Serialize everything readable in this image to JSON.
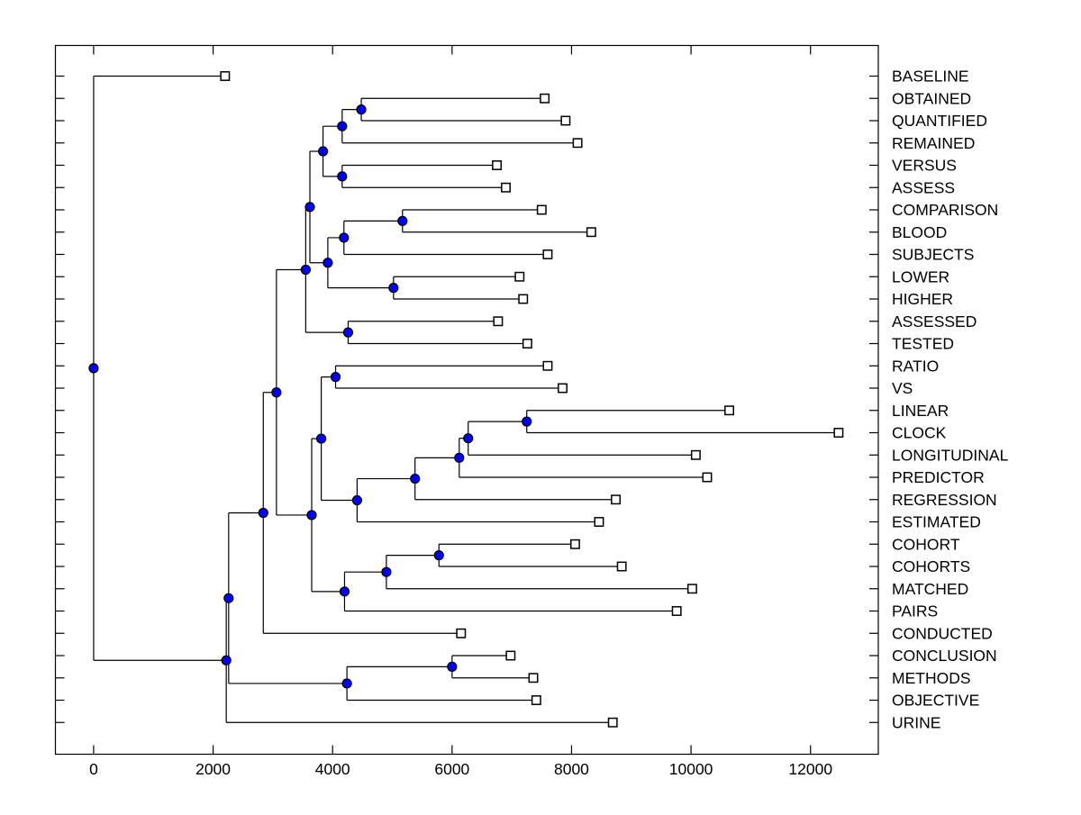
{
  "window": {
    "background": "#ffffff"
  },
  "chart_data": {
    "type": "dendrogram",
    "orientation": "root-left-leaves-right",
    "title": "",
    "xlabel": "",
    "ylabel": "",
    "grid": false,
    "legend": null,
    "x_range": [
      -640,
      13135
    ],
    "x_tick_values": [
      0,
      2000,
      4000,
      6000,
      8000,
      10000,
      12000
    ],
    "x_tick_labels": [
      "0",
      "2000",
      "4000",
      "6000",
      "8000",
      "10000",
      "12000"
    ],
    "leaf_labels": [
      "BASELINE",
      "OBTAINED",
      "QUANTIFIED",
      "REMAINED",
      "VERSUS",
      "ASSESS",
      "COMPARISON",
      "BLOOD",
      "SUBJECTS",
      "LOWER",
      "HIGHER",
      "ASSESSED",
      "TESTED",
      "RATIO",
      "VS",
      "LINEAR",
      "CLOCK",
      "LONGITUDINAL",
      "PREDICTOR",
      "REGRESSION",
      "ESTIMATED",
      "COHORT",
      "COHORTS",
      "MATCHED",
      "PAIRS",
      "CONDUCTED",
      "CONCLUSION",
      "METHODS",
      "OBJECTIVE",
      "URINE"
    ],
    "tree": {
      "x": 0,
      "children": [
        {
          "label": "BASELINE",
          "x": 2200
        },
        {
          "x": 2220,
          "children": [
            {
              "x": 2260,
              "children": [
                {
                  "x": 2840,
                  "children": [
                    {
                      "x": 3060,
                      "children": [
                        {
                          "x": 3550,
                          "children": [
                            {
                              "x": 3620,
                              "children": [
                                {
                                  "x": 3840,
                                  "children": [
                                    {
                                      "x": 4160,
                                      "children": [
                                        {
                                          "x": 4480,
                                          "children": [
                                            {
                                              "label": "OBTAINED",
                                              "x": 7550
                                            },
                                            {
                                              "label": "QUANTIFIED",
                                              "x": 7900
                                            }
                                          ]
                                        },
                                        {
                                          "label": "REMAINED",
                                          "x": 8100
                                        }
                                      ]
                                    },
                                    {
                                      "x": 4160,
                                      "children": [
                                        {
                                          "label": "VERSUS",
                                          "x": 6750
                                        },
                                        {
                                          "label": "ASSESS",
                                          "x": 6900
                                        }
                                      ]
                                    }
                                  ]
                                },
                                {
                                  "x": 3920,
                                  "children": [
                                    {
                                      "x": 4190,
                                      "children": [
                                        {
                                          "x": 5170,
                                          "children": [
                                            {
                                              "label": "COMPARISON",
                                              "x": 7500
                                            },
                                            {
                                              "label": "BLOOD",
                                              "x": 8330
                                            }
                                          ]
                                        },
                                        {
                                          "label": "SUBJECTS",
                                          "x": 7600
                                        }
                                      ]
                                    },
                                    {
                                      "x": 5020,
                                      "children": [
                                        {
                                          "label": "LOWER",
                                          "x": 7130
                                        },
                                        {
                                          "label": "HIGHER",
                                          "x": 7190
                                        }
                                      ]
                                    }
                                  ]
                                }
                              ]
                            },
                            {
                              "x": 4260,
                              "children": [
                                {
                                  "label": "ASSESSED",
                                  "x": 6770
                                },
                                {
                                  "label": "TESTED",
                                  "x": 7260
                                }
                              ]
                            }
                          ]
                        },
                        {
                          "x": 3650,
                          "children": [
                            {
                              "x": 3810,
                              "children": [
                                {
                                  "x": 4050,
                                  "children": [
                                    {
                                      "label": "RATIO",
                                      "x": 7600
                                    },
                                    {
                                      "label": "VS",
                                      "x": 7850
                                    }
                                  ]
                                },
                                {
                                  "x": 4410,
                                  "children": [
                                    {
                                      "x": 5380,
                                      "children": [
                                        {
                                          "x": 6120,
                                          "children": [
                                            {
                                              "x": 6270,
                                              "children": [
                                                {
                                                  "x": 7250,
                                                  "children": [
                                                    {
                                                      "label": "LINEAR",
                                                      "x": 10640
                                                    },
                                                    {
                                                      "label": "CLOCK",
                                                      "x": 12470
                                                    }
                                                  ]
                                                },
                                                {
                                                  "label": "LONGITUDINAL",
                                                  "x": 10080
                                                }
                                              ]
                                            },
                                            {
                                              "label": "PREDICTOR",
                                              "x": 10270
                                            }
                                          ]
                                        },
                                        {
                                          "label": "REGRESSION",
                                          "x": 8740
                                        }
                                      ]
                                    },
                                    {
                                      "label": "ESTIMATED",
                                      "x": 8460
                                    }
                                  ]
                                }
                              ]
                            },
                            {
                              "x": 4200,
                              "children": [
                                {
                                  "x": 4900,
                                  "children": [
                                    {
                                      "x": 5780,
                                      "children": [
                                        {
                                          "label": "COHORT",
                                          "x": 8060
                                        },
                                        {
                                          "label": "COHORTS",
                                          "x": 8840
                                        }
                                      ]
                                    },
                                    {
                                      "label": "MATCHED",
                                      "x": 10020
                                    }
                                  ]
                                },
                                {
                                  "label": "PAIRS",
                                  "x": 9760
                                }
                              ]
                            }
                          ]
                        }
                      ]
                    },
                    {
                      "label": "CONDUCTED",
                      "x": 6150
                    }
                  ]
                },
                {
                  "x": 4240,
                  "children": [
                    {
                      "x": 6000,
                      "children": [
                        {
                          "label": "CONCLUSION",
                          "x": 6980
                        },
                        {
                          "label": "METHODS",
                          "x": 7360
                        }
                      ]
                    },
                    {
                      "label": "OBJECTIVE",
                      "x": 7410
                    }
                  ]
                }
              ]
            },
            {
              "label": "URINE",
              "x": 8690
            }
          ]
        }
      ]
    },
    "styles": {
      "line_color": "#000000",
      "branch_node_fill": "#0000FF",
      "branch_node_stroke": "#000000",
      "leaf_node_fill": "#FFFFFF",
      "leaf_node_stroke": "#000000",
      "text_color": "#000000"
    }
  }
}
